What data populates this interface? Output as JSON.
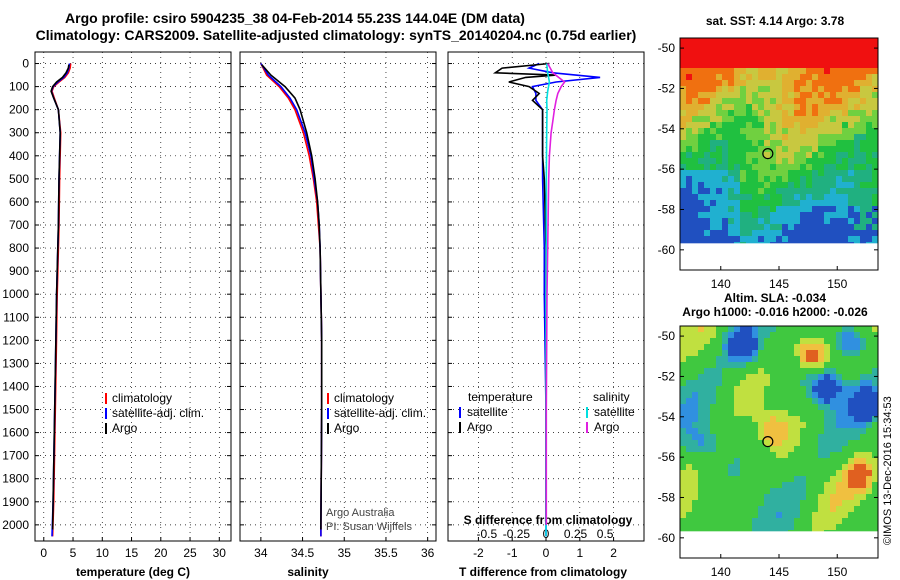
{
  "titles": {
    "line1": "Argo profile: csiro 5904235_38 04-Feb-2014 55.23S 144.04E (DM data)",
    "line2": "Climatology: CARS2009. Satellite-adjusted climatology: synTS_20140204.nc (0.75d earlier)"
  },
  "colors": {
    "climatology": "#ff0000",
    "satellite": "#0000ff",
    "argo": "#000000",
    "s_satellite": "#00e0e0",
    "s_argo": "#e020e0"
  },
  "depth_axis": {
    "ticks": [
      0,
      100,
      200,
      300,
      400,
      500,
      600,
      700,
      800,
      900,
      1000,
      1100,
      1200,
      1300,
      1400,
      1500,
      1600,
      1700,
      1800,
      1900,
      2000
    ],
    "range": [
      -50,
      2070
    ]
  },
  "chart_data": [
    {
      "type": "line",
      "id": "temperature",
      "xlabel": "temperature (deg C)",
      "xlim": [
        -1.5,
        32
      ],
      "xticks": [
        0,
        5,
        10,
        15,
        20,
        25,
        30
      ],
      "legend": [
        "climatology",
        "satellite-adj. clim.",
        "Argo"
      ],
      "series": [
        {
          "name": "climatology",
          "color": "#ff0000",
          "depth": [
            0,
            20,
            40,
            60,
            80,
            100,
            120,
            150,
            200,
            300,
            500,
            700,
            1000,
            1300,
            1600,
            1900,
            2050
          ],
          "values": [
            4.6,
            4.5,
            4.2,
            3.6,
            2.6,
            1.7,
            1.4,
            1.8,
            2.5,
            2.9,
            2.7,
            2.6,
            2.3,
            2.1,
            1.9,
            1.7,
            1.5
          ]
        },
        {
          "name": "satellite-adj. clim.",
          "color": "#0000ff",
          "depth": [
            0,
            20,
            40,
            60,
            80,
            100,
            120,
            150,
            200,
            300,
            500,
            700,
            1000,
            1300,
            1600,
            1900,
            2050
          ],
          "values": [
            4.4,
            4.3,
            4.0,
            3.4,
            2.4,
            1.6,
            1.3,
            1.7,
            2.5,
            2.8,
            2.6,
            2.5,
            2.2,
            2.0,
            1.8,
            1.6,
            1.4
          ]
        },
        {
          "name": "Argo",
          "color": "#000000",
          "depth": [
            5,
            20,
            40,
            60,
            80,
            100,
            120,
            150,
            200,
            300,
            500,
            700,
            1000,
            1300,
            1600,
            1900,
            2020
          ],
          "values": [
            4.3,
            4.2,
            3.8,
            3.2,
            2.2,
            1.5,
            1.25,
            1.7,
            2.5,
            2.8,
            2.6,
            2.5,
            2.2,
            2.0,
            1.8,
            1.6,
            1.5
          ]
        }
      ]
    },
    {
      "type": "line",
      "id": "salinity",
      "xlabel": "salinity",
      "xlim": [
        33.75,
        36.1
      ],
      "xticks": [
        34,
        34.5,
        35,
        35.5,
        36
      ],
      "legend": [
        "climatology",
        "satellite-adj. clim.",
        "Argo"
      ],
      "annotations": [
        "Argo Australia",
        "PI: Susan Wijffels"
      ],
      "series": [
        {
          "name": "climatology",
          "color": "#ff0000",
          "depth": [
            0,
            50,
            100,
            150,
            200,
            300,
            400,
            500,
            600,
            700,
            800,
            1000,
            1200,
            1500,
            2000,
            2050
          ],
          "values": [
            34.0,
            34.07,
            34.22,
            34.33,
            34.41,
            34.51,
            34.58,
            34.63,
            34.67,
            34.69,
            34.71,
            34.72,
            34.73,
            34.73,
            34.72,
            34.72
          ]
        },
        {
          "name": "satellite-adj. clim.",
          "color": "#0000ff",
          "depth": [
            0,
            50,
            100,
            150,
            200,
            300,
            400,
            500,
            600,
            700,
            800,
            1000,
            1200,
            1500,
            2000,
            2050
          ],
          "values": [
            34.0,
            34.09,
            34.24,
            34.35,
            34.43,
            34.53,
            34.6,
            34.64,
            34.68,
            34.7,
            34.71,
            34.72,
            34.73,
            34.73,
            34.72,
            34.72
          ]
        },
        {
          "name": "Argo",
          "color": "#000000",
          "depth": [
            5,
            50,
            100,
            150,
            200,
            300,
            400,
            500,
            600,
            700,
            800,
            1000,
            1200,
            1500,
            2000,
            2020
          ],
          "values": [
            34.01,
            34.12,
            34.29,
            34.41,
            34.47,
            34.55,
            34.61,
            34.65,
            34.68,
            34.7,
            34.71,
            34.72,
            34.73,
            34.73,
            34.72,
            34.72
          ]
        }
      ]
    },
    {
      "type": "line",
      "id": "difference",
      "xlabel": "T difference from climatology",
      "xlim": [
        -2.9,
        2.9
      ],
      "xticks": [
        -2,
        -1,
        0,
        1,
        2
      ],
      "s_xlabel": "S difference from climatology",
      "s_ticks": [
        "-0.5",
        "-0.25",
        "0",
        "0.25",
        "0.5"
      ],
      "legend_t_title": "temperature",
      "legend_s_title": "salinity",
      "legend_t": [
        "satellite",
        "Argo"
      ],
      "legend_s": [
        "satellite",
        "Argo"
      ],
      "series": [
        {
          "name": "T satellite",
          "color": "#0000ff",
          "depth": [
            0,
            20,
            40,
            60,
            80,
            100,
            130,
            160,
            200,
            300,
            500,
            800,
            1000,
            1500,
            2000,
            2050
          ],
          "values": [
            -0.2,
            -0.5,
            0.2,
            1.6,
            0.3,
            -0.4,
            -0.3,
            -0.3,
            -0.1,
            -0.1,
            -0.1,
            -0.05,
            -0.05,
            0,
            0,
            0
          ]
        },
        {
          "name": "T Argo",
          "color": "#000000",
          "depth": [
            0,
            20,
            40,
            50,
            60,
            80,
            100,
            130,
            160,
            200,
            250,
            300,
            400,
            500,
            800,
            1000,
            1500,
            2000
          ],
          "values": [
            0.1,
            -1.3,
            -1.5,
            0.3,
            -0.6,
            -1.1,
            -0.5,
            -0.2,
            -0.4,
            -0.1,
            -0.1,
            -0.1,
            -0.1,
            -0.05,
            0,
            0,
            0,
            0
          ]
        },
        {
          "name": "S satellite",
          "color": "#00e0e0",
          "depth": [
            0,
            40,
            80,
            120,
            160,
            200,
            300,
            500,
            800,
            1000,
            1500,
            2000,
            2050
          ],
          "values": [
            0.02,
            0.05,
            0.1,
            0.05,
            0.02,
            0.03,
            0.02,
            0.01,
            0.01,
            0,
            0,
            0,
            0
          ]
        },
        {
          "name": "S Argo",
          "color": "#e020e0",
          "depth": [
            0,
            40,
            80,
            100,
            130,
            160,
            200,
            250,
            300,
            400,
            500,
            800,
            1000,
            1500,
            2000
          ],
          "values": [
            0.05,
            0.2,
            0.55,
            0.45,
            0.35,
            0.3,
            0.25,
            0.2,
            0.15,
            0.1,
            0.08,
            0.05,
            0.03,
            0.01,
            0.01
          ]
        }
      ]
    },
    {
      "type": "heatmap",
      "id": "sst_map",
      "title": "sat. SST: 4.14 Argo: 3.78",
      "xticks": [
        140,
        145,
        150
      ],
      "yticks": [
        -50,
        -52,
        -54,
        -56,
        -58,
        -60
      ],
      "xlim": [
        136.5,
        153.5
      ],
      "ylim": [
        -61,
        -49.5
      ],
      "marker": {
        "lon": 144.04,
        "lat": -55.23
      }
    },
    {
      "type": "heatmap",
      "id": "sla_map",
      "title": "Altim. SLA: -0.034",
      "subtitle": "Argo h1000: -0.016 h2000: -0.026",
      "xticks": [
        140,
        145,
        150
      ],
      "yticks": [
        -50,
        -52,
        -54,
        -56,
        -58,
        -60
      ],
      "xlim": [
        136.5,
        153.5
      ],
      "ylim": [
        -61,
        -49.5
      ],
      "marker": {
        "lon": 144.04,
        "lat": -55.23
      }
    }
  ],
  "credit": "©IMOS 13-Dec-2016 15:34:53"
}
